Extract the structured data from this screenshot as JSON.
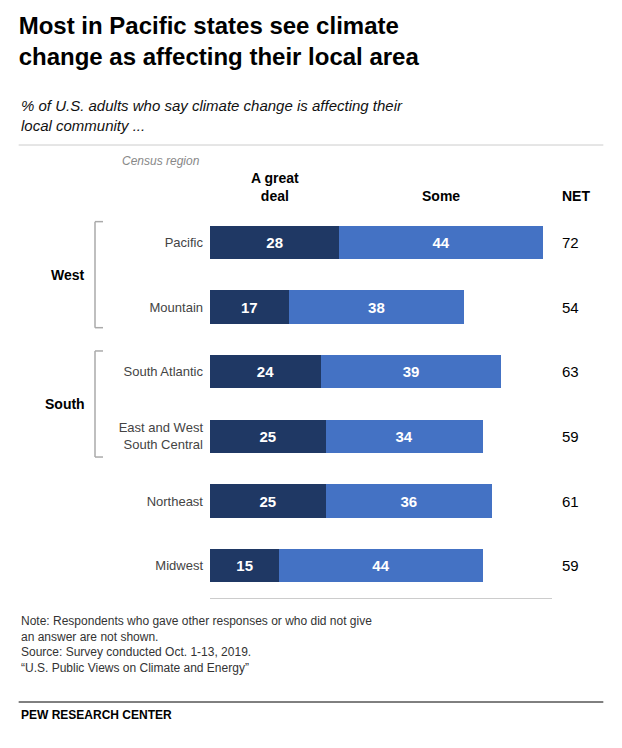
{
  "chart_data": {
    "type": "bar",
    "orientation": "horizontal",
    "stacked": true,
    "data_labels": true,
    "tick_labels": false,
    "title": "Most in Pacific states see climate\nchange as affecting their local area",
    "subtitle": "% of U.S. adults who say climate change is affecting their\nlocal community ...",
    "category_header": "Census region",
    "categories": [
      "Pacific",
      "Mountain",
      "South Atlantic",
      "East and West\nSouth Central",
      "Northeast",
      "Midwest"
    ],
    "series": [
      {
        "name": "A great\ndeal",
        "color": "#1F3864",
        "values": [
          28,
          17,
          24,
          25,
          25,
          15
        ]
      },
      {
        "name": "Some",
        "color": "#4472C4",
        "values": [
          44,
          38,
          39,
          34,
          36,
          44
        ]
      }
    ],
    "net": {
      "name": "NET",
      "values": [
        72,
        54,
        63,
        59,
        61,
        59
      ]
    },
    "groups": [
      {
        "name": "West",
        "categories": [
          "Pacific",
          "Mountain"
        ]
      },
      {
        "name": "South",
        "categories": [
          "South Atlantic",
          "East and West\nSouth Central"
        ]
      }
    ],
    "xlim": [
      0,
      74
    ],
    "grid": false,
    "note": "Note: Respondents who gave other responses or who did not give\nan answer are not shown.\nSource: Survey conducted Oct. 1-13, 2019.\n“U.S. Public Views on Climate and Energy”",
    "footer": "PEW RESEARCH CENTER"
  }
}
